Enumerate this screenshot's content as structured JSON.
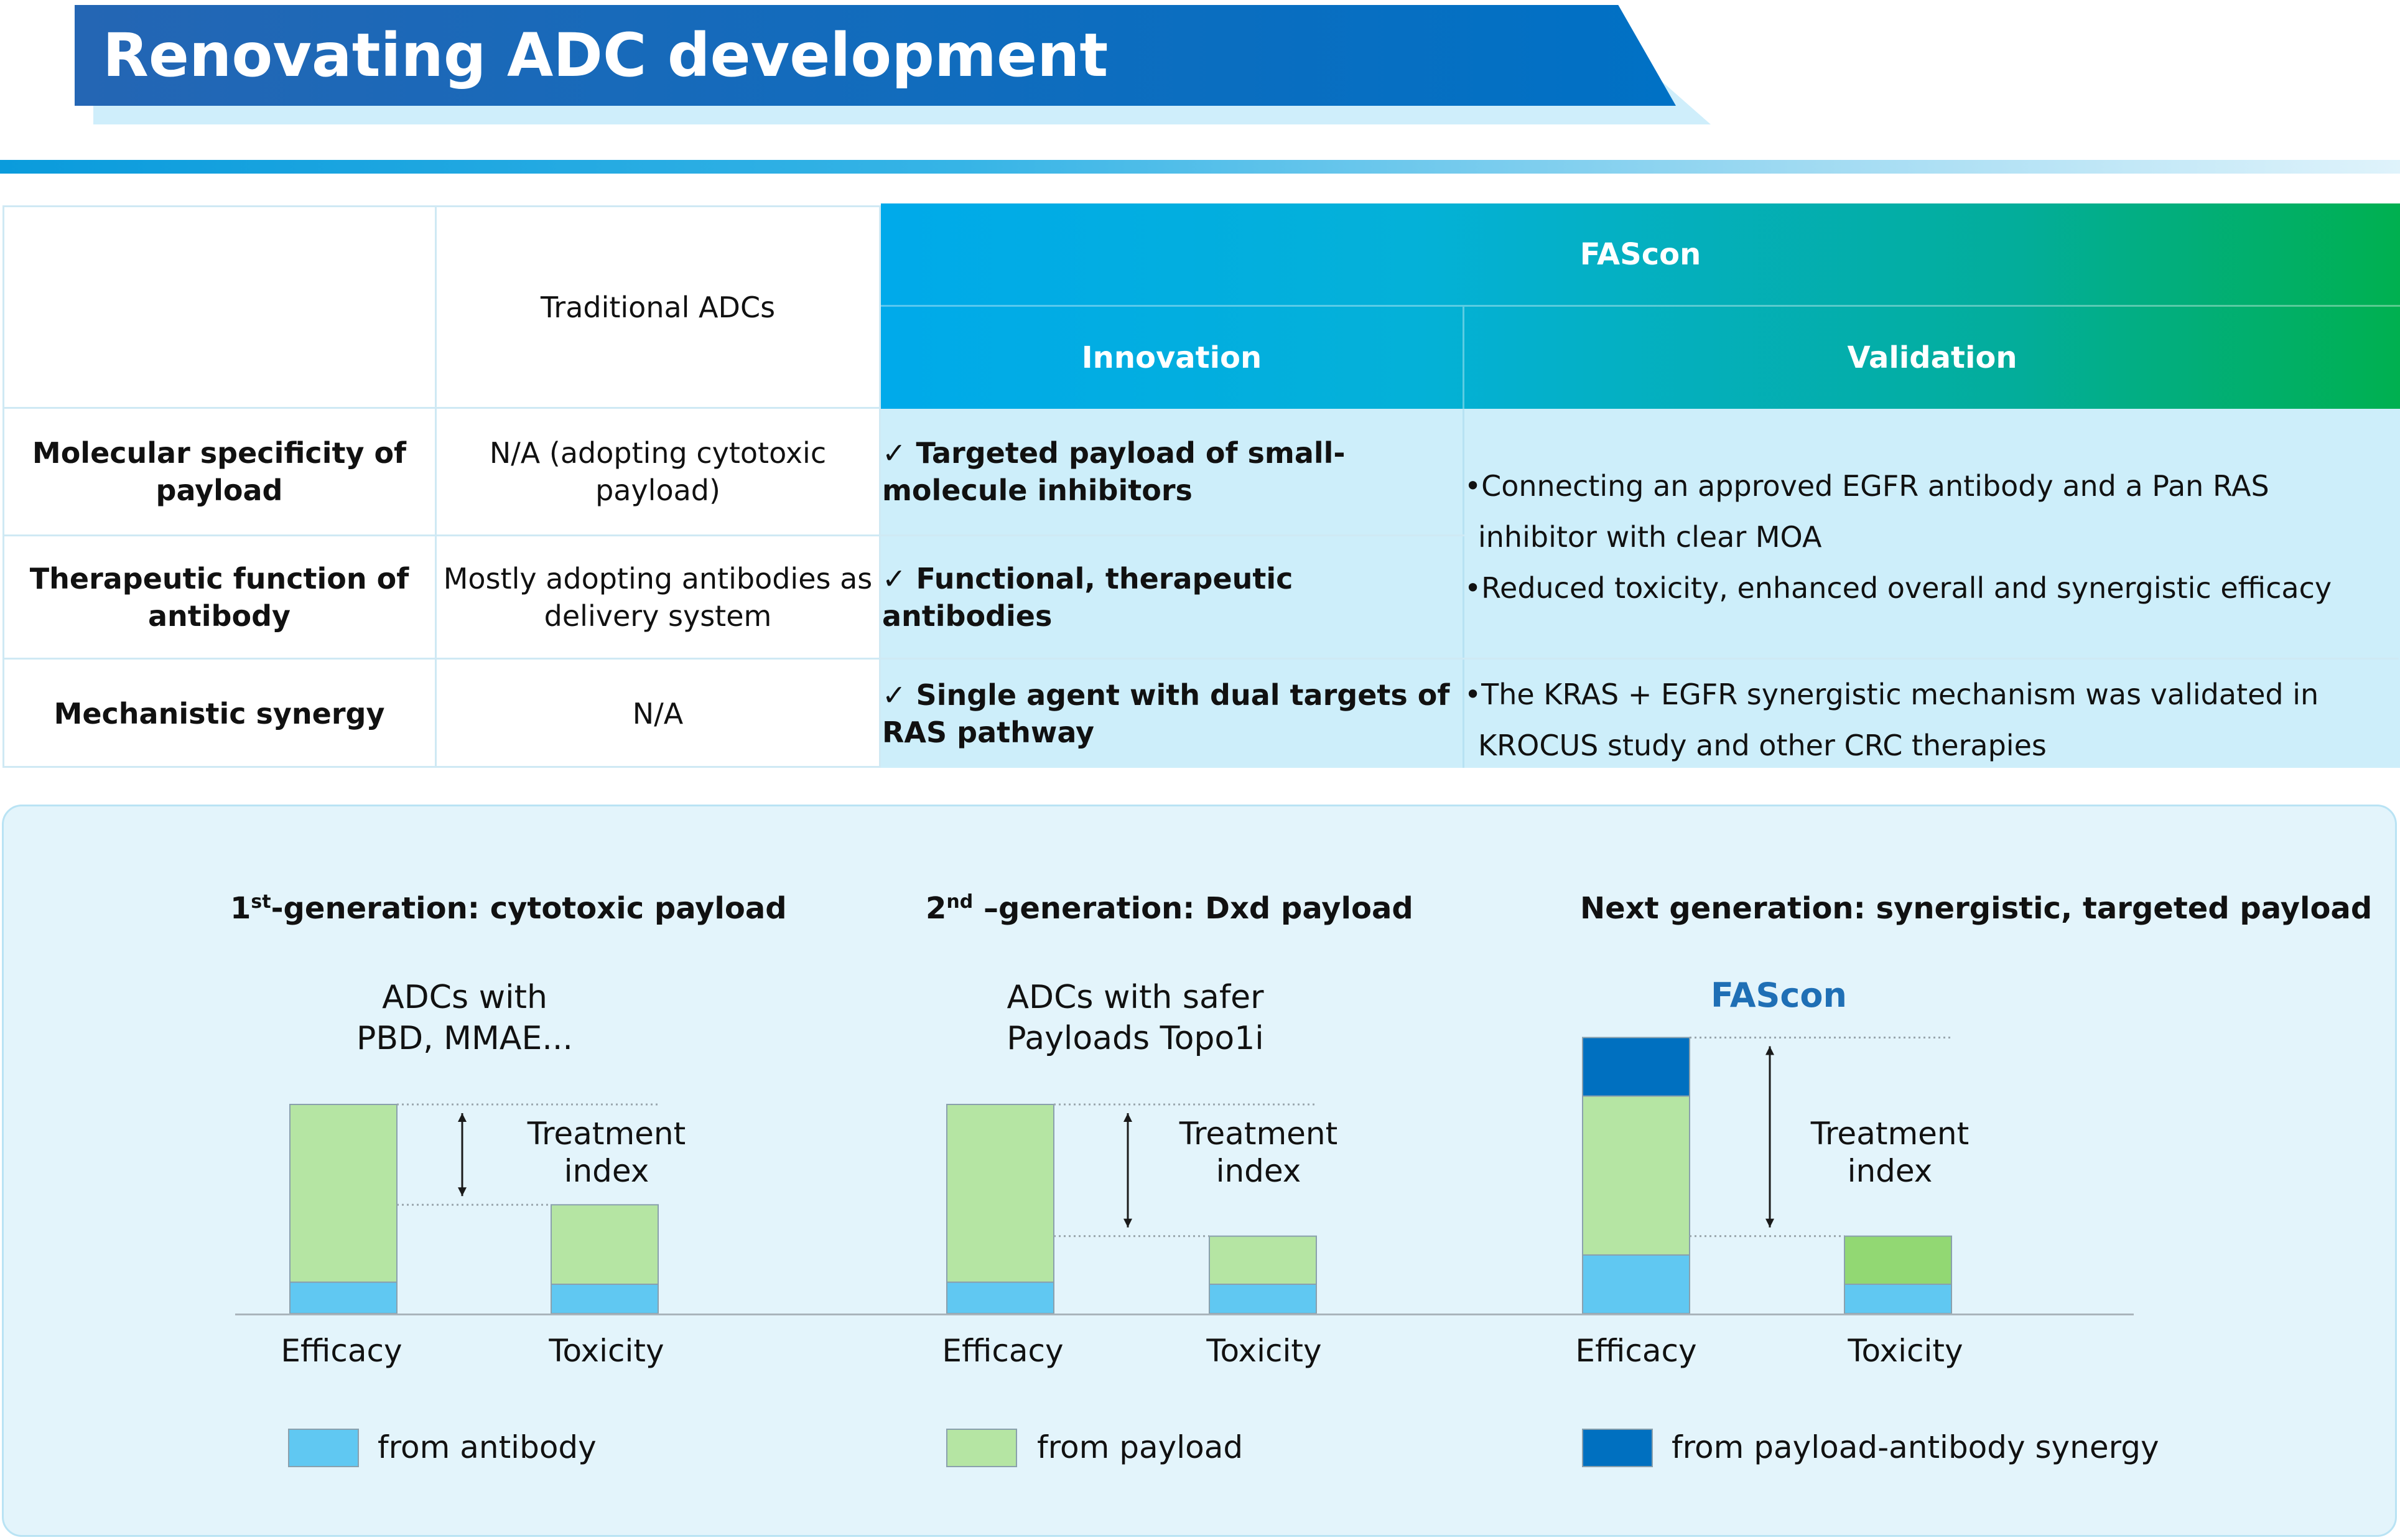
{
  "title": "Renovating ADC development",
  "colors": {
    "antibody": "#60c8f2",
    "payload": "#b5e5a3",
    "payload_highlight": "#92d873",
    "synergy": "#0070c0",
    "title_bar": "#0071c5"
  },
  "table": {
    "col_traditional": "Traditional ADCs",
    "group_header": "FAScon",
    "col_innovation": "Innovation",
    "col_validation": "Validation",
    "rows": [
      {
        "label": "Molecular specificity of payload",
        "traditional": "N/A (adopting cytotoxic payload)",
        "innovation": "✓ Targeted payload of small-molecule inhibitors"
      },
      {
        "label": "Therapeutic function of antibody",
        "traditional": "Mostly adopting antibodies as delivery system",
        "innovation": "✓ Functional, therapeutic antibodies"
      },
      {
        "label": "Mechanistic synergy",
        "traditional": "N/A",
        "innovation": "✓ Single agent with dual targets of RAS pathway"
      }
    ],
    "validation_rows_1_2": [
      "•Connecting an approved EGFR antibody and a Pan RAS inhibitor with clear MOA",
      "•Reduced toxicity, enhanced overall and synergistic efficacy"
    ],
    "validation_row_3": "•The KRAS + EGFR synergistic mechanism was validated in KROCUS study and other CRC therapies"
  },
  "generations": [
    {
      "title_prefix": "1",
      "title_sup": "st",
      "title_rest": "-generation: cytotoxic payload",
      "subtitle_line1": "ADCs with",
      "subtitle_line2": "PBD, MMAE..."
    },
    {
      "title_prefix": "2",
      "title_sup": "nd",
      "title_rest": " –generation: Dxd payload",
      "subtitle_line1": "ADCs with safer",
      "subtitle_line2": "Payloads Topo1i"
    },
    {
      "title_prefix": "",
      "title_sup": "",
      "title_rest": "Next generation:  synergistic, targeted payload",
      "subtitle_line1": "FAScon",
      "subtitle_line2": ""
    }
  ],
  "chart_data": {
    "type": "bar",
    "stacked": true,
    "units": "relative (arbitrary)",
    "categories": [
      "Efficacy",
      "Toxicity"
    ],
    "treatment_index_label_line1": "Treatment",
    "treatment_index_label_line2": "index",
    "panels": [
      {
        "name": "1st-generation: cytotoxic payload",
        "series": [
          {
            "name": "from antibody",
            "values": [
              0.15,
              0.14
            ]
          },
          {
            "name": "from payload",
            "values": [
              0.85,
              0.38
            ]
          },
          {
            "name": "from payload-antibody synergy",
            "values": [
              0,
              0
            ]
          }
        ]
      },
      {
        "name": "2nd-generation: Dxd payload",
        "series": [
          {
            "name": "from antibody",
            "values": [
              0.15,
              0.14
            ]
          },
          {
            "name": "from payload",
            "values": [
              0.85,
              0.23
            ]
          },
          {
            "name": "from payload-antibody synergy",
            "values": [
              0,
              0
            ]
          }
        ]
      },
      {
        "name": "Next generation: synergistic, targeted payload",
        "series": [
          {
            "name": "from antibody",
            "values": [
              0.28,
              0.14
            ]
          },
          {
            "name": "from payload",
            "values": [
              0.76,
              0.23
            ]
          },
          {
            "name": "from payload-antibody synergy",
            "values": [
              0.28,
              0
            ]
          }
        ]
      }
    ],
    "legend": [
      "from antibody",
      "from payload",
      "from payload-antibody synergy"
    ]
  }
}
